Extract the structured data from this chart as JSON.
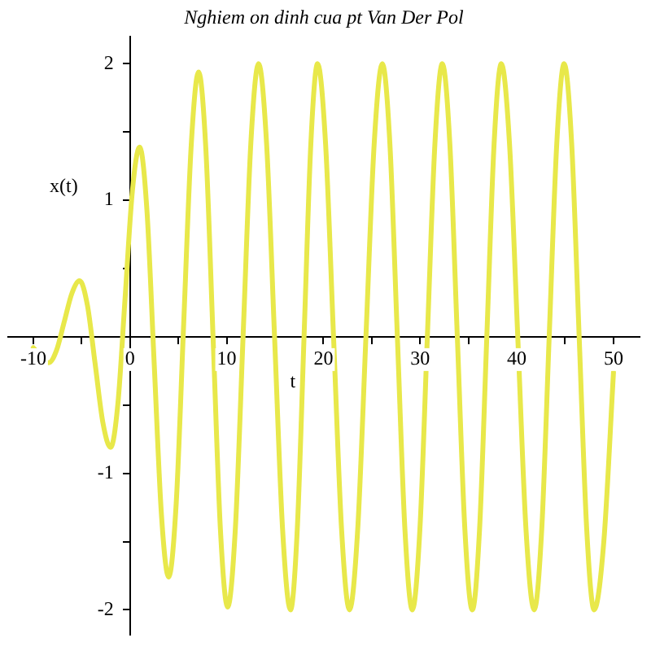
{
  "chart_data": {
    "type": "line",
    "title": "Nghiem on dinh cua pt Van Der Pol",
    "xlabel": "t",
    "ylabel": "x(t)",
    "xlim": [
      -12.6,
      52.7
    ],
    "ylim": [
      -2.18,
      2.2
    ],
    "xticks": [
      -10,
      {
        "value": -5,
        "label": null
      },
      0,
      {
        "value": 5,
        "label": null
      },
      10,
      {
        "value": 15,
        "label": null
      },
      20,
      {
        "value": 25,
        "label": null
      },
      30,
      {
        "value": 35,
        "label": null
      },
      40,
      {
        "value": 45,
        "label": null
      },
      50
    ],
    "yticks": [
      -2,
      {
        "value": -1.5,
        "label": null
      },
      -1,
      {
        "value": -0.5,
        "label": null
      },
      {
        "value": 0.5,
        "label": null
      },
      1,
      {
        "value": 1.5,
        "label": null
      },
      2
    ],
    "grid": false,
    "legend": false,
    "marker": "none",
    "line_style": "solid",
    "series": [
      {
        "color": "#e8e84a",
        "x": [
          -10,
          -8.4,
          -7.6,
          -6.8,
          -6.0,
          -5.2,
          -4.4,
          -3.6,
          -2.8,
          -2.0,
          -1.25,
          -0.5,
          0.25,
          1.0,
          1.75,
          2.5,
          3.25,
          4.0,
          4.78,
          5.55,
          6.33,
          7.1,
          7.85,
          8.6,
          9.35,
          10.1,
          10.9,
          11.7,
          12.5,
          13.3,
          14.13,
          14.95,
          15.78,
          16.6,
          17.3,
          18.0,
          18.7,
          19.4,
          20.23,
          21.05,
          21.88,
          22.7,
          23.55,
          24.4,
          25.25,
          26.1,
          26.88,
          27.65,
          28.43,
          29.2,
          29.98,
          30.75,
          31.53,
          32.3,
          33.08,
          33.85,
          34.63,
          35.4,
          36.15,
          36.9,
          37.65,
          38.4,
          39.25,
          40.1,
          40.95,
          41.8,
          42.58,
          43.35,
          44.13,
          44.9,
          45.68,
          46.45,
          47.23,
          48.0,
          49.0,
          50.0
        ],
        "values": [
          -0.08,
          -0.19,
          -0.1,
          0.11,
          0.32,
          0.41,
          0.23,
          -0.2,
          -0.63,
          -0.81,
          -0.49,
          0.29,
          1.07,
          1.39,
          0.93,
          -0.19,
          -1.3,
          -1.76,
          -1.22,
          0.09,
          1.4,
          1.94,
          1.37,
          -0.02,
          -1.41,
          -1.98,
          -1.4,
          0.01,
          1.42,
          2.0,
          1.41,
          0,
          -1.41,
          -2.0,
          -1.41,
          0,
          1.41,
          2.0,
          1.41,
          0,
          -1.41,
          -2.0,
          -1.41,
          0,
          1.41,
          2.0,
          1.41,
          0,
          -1.41,
          -2.0,
          -1.41,
          0,
          1.41,
          2.0,
          1.41,
          0,
          -1.41,
          -2.0,
          -1.41,
          0,
          1.41,
          2.0,
          1.41,
          0,
          -1.41,
          -2.0,
          -1.41,
          0,
          1.41,
          2.0,
          1.41,
          0,
          -1.41,
          -2.0,
          -1.5,
          -0.26
        ]
      }
    ]
  }
}
